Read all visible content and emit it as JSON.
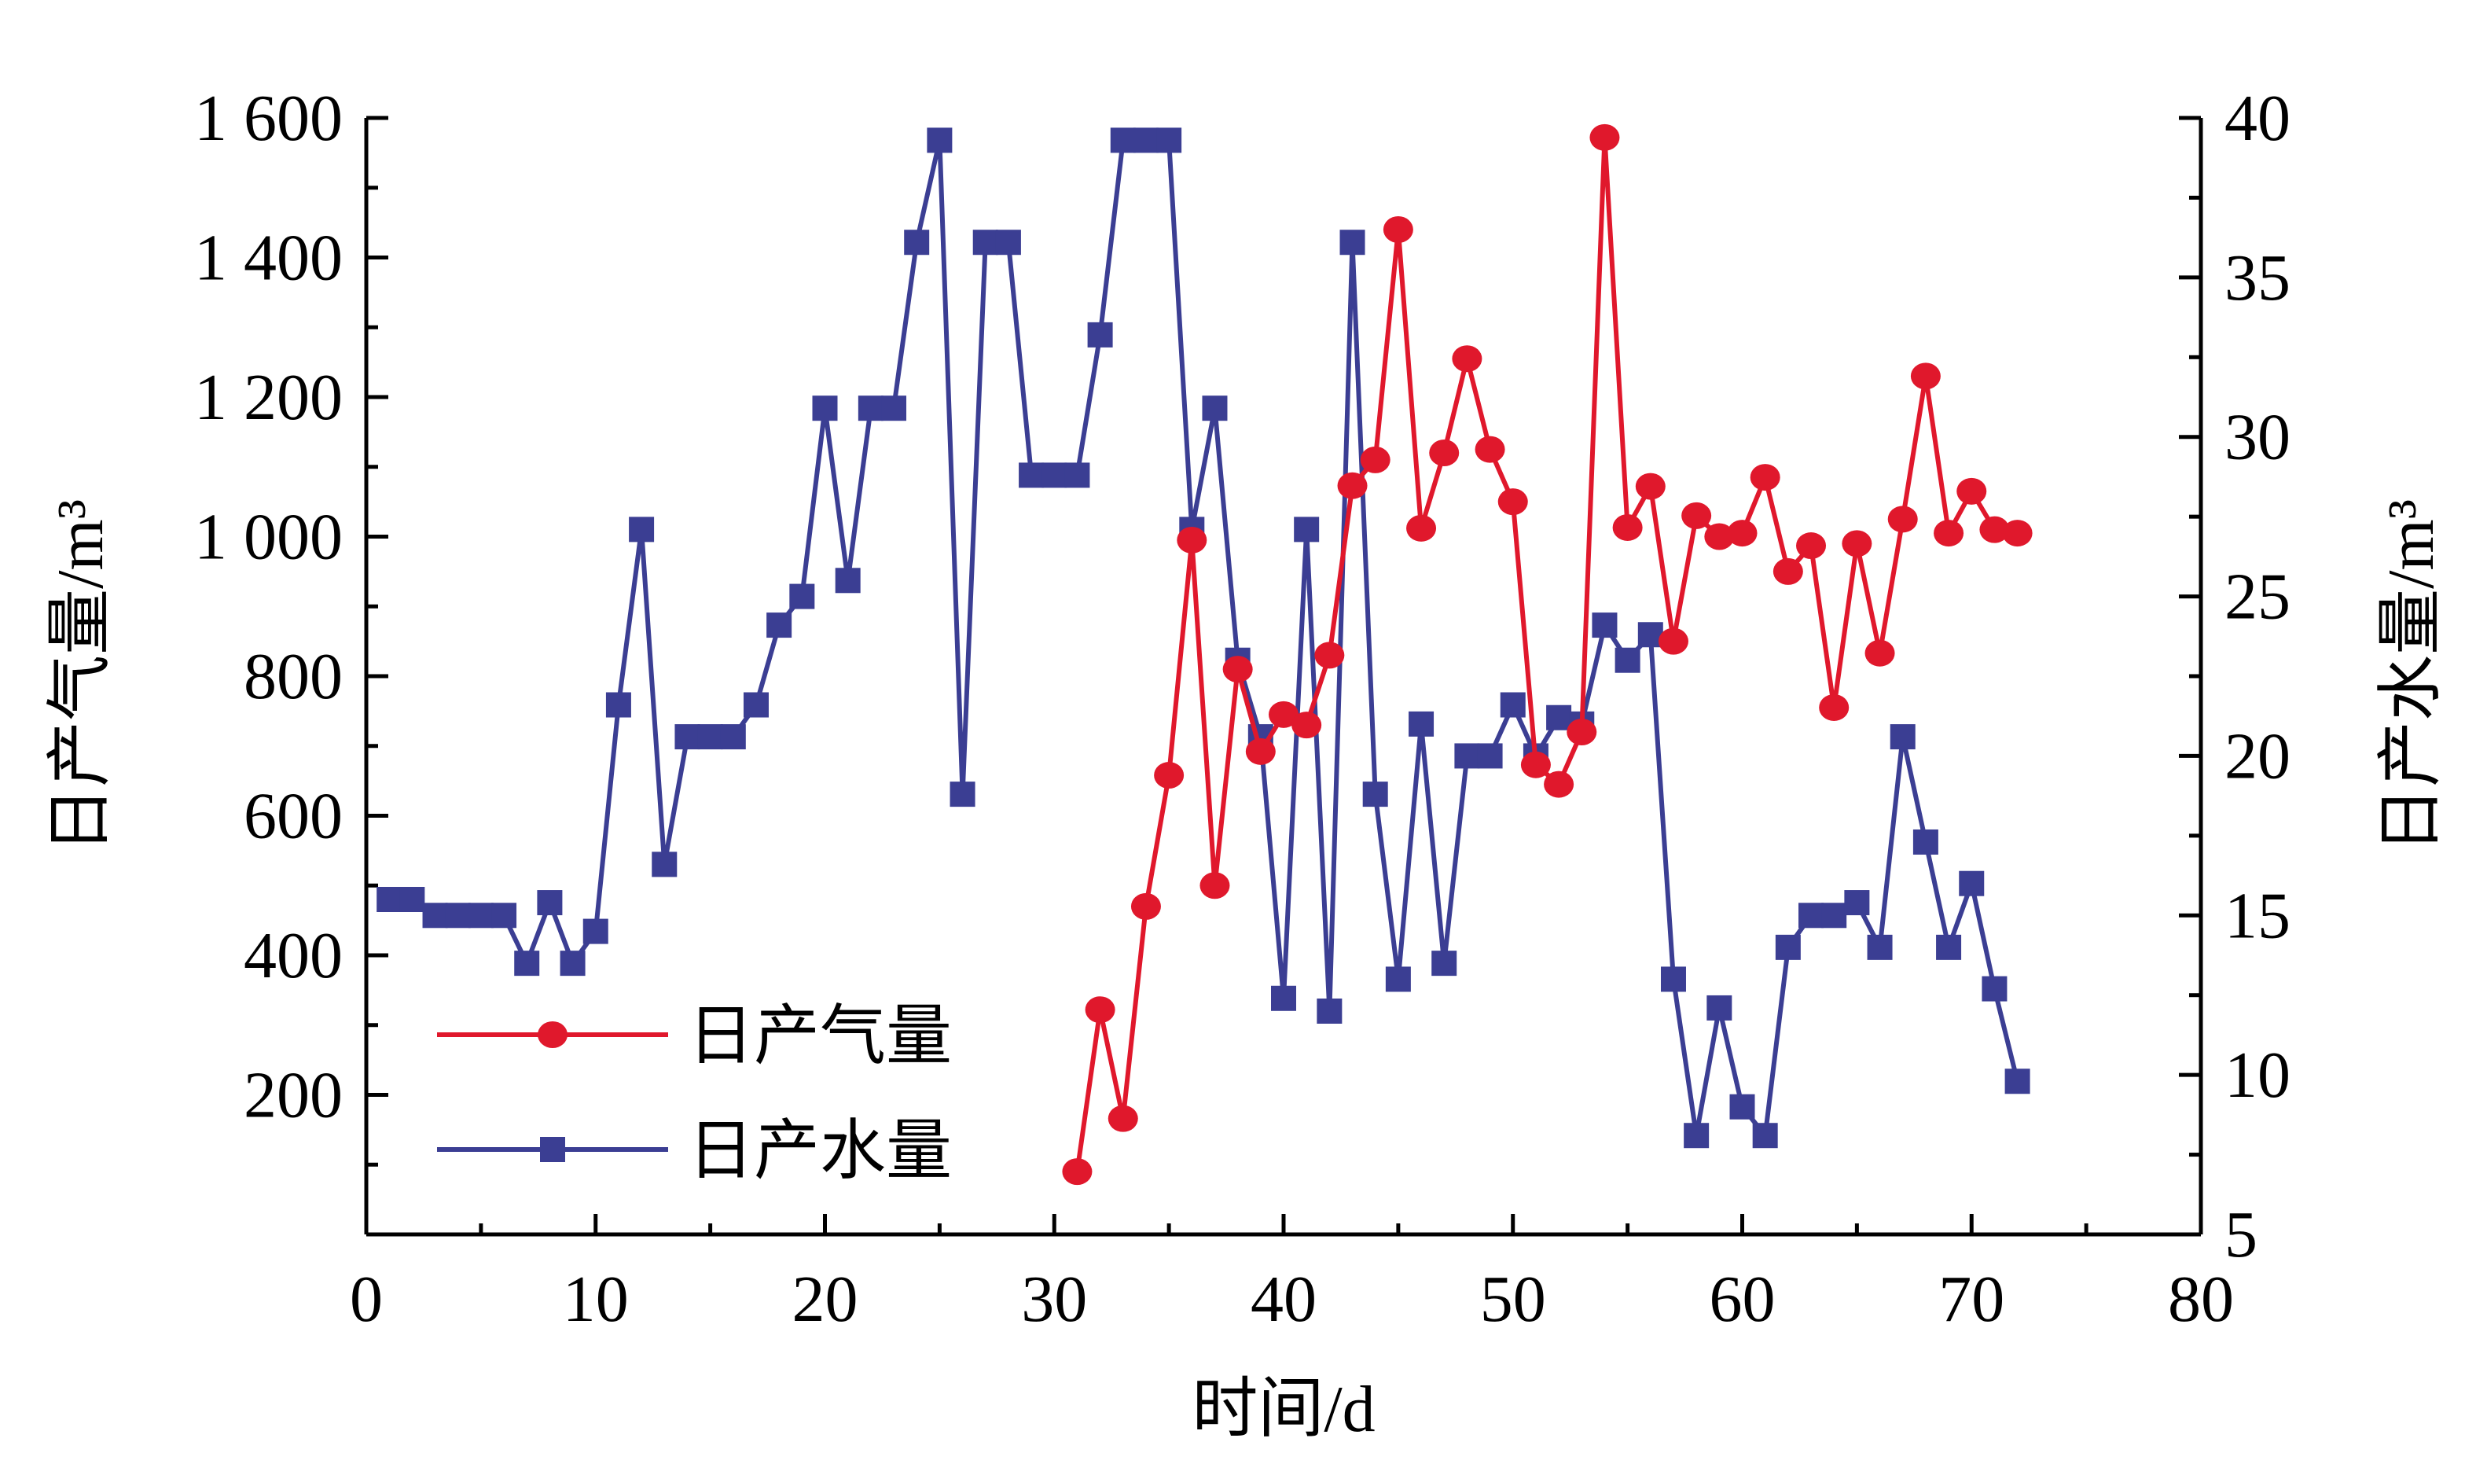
{
  "chart_data": {
    "type": "line",
    "title": "",
    "xlabel": "时间/d",
    "ylabel_left": "日产气量/m³",
    "ylabel_right": "日产水量/m³",
    "xlim": [
      0,
      80
    ],
    "ylim_left": [
      0,
      1600
    ],
    "ylim_right": [
      5,
      40
    ],
    "xticks": [
      0,
      10,
      20,
      30,
      40,
      50,
      60,
      70,
      80
    ],
    "xtick_labels": [
      "0",
      "10",
      "20",
      "30",
      "40",
      "50",
      "60",
      "70",
      "80"
    ],
    "yticks_left": [
      200,
      400,
      600,
      800,
      1000,
      1200,
      1400,
      1600
    ],
    "ytick_labels_left": [
      "200",
      "400",
      "600",
      "800",
      "1 000",
      "1 200",
      "1 400",
      "1 600"
    ],
    "yticks_right": [
      5,
      10,
      15,
      20,
      25,
      30,
      35,
      40
    ],
    "ytick_labels_right": [
      "5",
      "10",
      "15",
      "20",
      "25",
      "30",
      "35",
      "40"
    ],
    "grid": false,
    "legend_position": "bottom-left",
    "series": [
      {
        "name": "日产气量",
        "axis": "left",
        "color": "#e0182c",
        "marker": "circle",
        "x": [
          31,
          32,
          33,
          34,
          35,
          36,
          37,
          38,
          39,
          40,
          41,
          42,
          43,
          44,
          45,
          46,
          47,
          48,
          49,
          50,
          51,
          52,
          53,
          54,
          55,
          56,
          57,
          58,
          59,
          60,
          61,
          62,
          63,
          64,
          65,
          66,
          67,
          68,
          69,
          70,
          71,
          72
        ],
        "y": [
          90,
          322,
          166,
          470,
          658,
          995,
          500,
          810,
          692,
          745,
          730,
          830,
          1073,
          1110,
          1440,
          1012,
          1120,
          1255,
          1125,
          1050,
          673,
          645,
          720,
          1572,
          1013,
          1072,
          850,
          1030,
          1000,
          1005,
          1085,
          950,
          987,
          755,
          990,
          833,
          1025,
          1230,
          1005,
          1065,
          1010,
          1005
        ]
      },
      {
        "name": "日产水量",
        "axis": "right",
        "color": "#3b3e93",
        "marker": "square",
        "x": [
          1,
          2,
          3,
          4,
          5,
          6,
          7,
          8,
          9,
          10,
          11,
          12,
          13,
          14,
          15,
          16,
          17,
          18,
          19,
          20,
          21,
          22,
          23,
          24,
          25,
          26,
          27,
          28,
          29,
          30,
          31,
          32,
          33,
          34,
          35,
          36,
          37,
          38,
          39,
          40,
          41,
          42,
          43,
          44,
          45,
          46,
          47,
          48,
          49,
          50,
          51,
          52,
          53,
          54,
          55,
          56,
          57,
          58,
          59,
          60,
          61,
          62,
          63,
          64,
          65,
          66,
          67,
          68,
          69,
          70,
          71,
          72
        ],
        "y": [
          15.5,
          15.5,
          15.0,
          15.0,
          15.0,
          15.0,
          13.5,
          15.4,
          13.5,
          14.5,
          21.6,
          27.1,
          16.6,
          20.6,
          20.6,
          20.6,
          21.6,
          24.1,
          25.0,
          30.9,
          25.5,
          30.9,
          30.9,
          36.1,
          39.3,
          18.8,
          36.1,
          36.1,
          28.8,
          28.8,
          28.8,
          33.2,
          39.3,
          39.3,
          39.3,
          27.1,
          30.9,
          23.0,
          20.6,
          12.4,
          27.1,
          12.0,
          36.1,
          18.8,
          13.0,
          21.0,
          13.5,
          20.0,
          20.0,
          21.6,
          20.0,
          21.2,
          21.0,
          24.1,
          23.0,
          23.8,
          13.0,
          8.1,
          12.1,
          9.0,
          8.1,
          14.0,
          15.0,
          15.0,
          15.4,
          14.0,
          20.6,
          17.3,
          14.0,
          16.0,
          12.7,
          9.8
        ]
      }
    ]
  },
  "legend": {
    "gas_label": "日产气量",
    "water_label": "日产水量"
  },
  "colors": {
    "gas": "#e0182c",
    "water": "#3b3e93",
    "axis": "#000000"
  }
}
